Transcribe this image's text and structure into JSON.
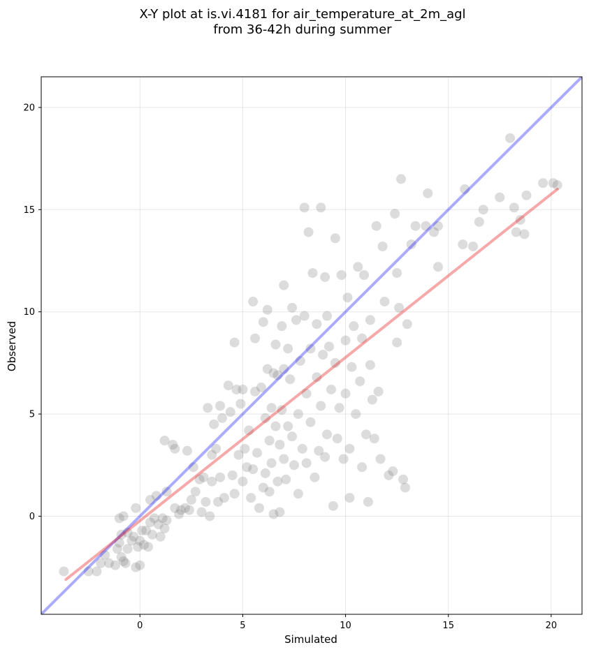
{
  "chart_data": {
    "type": "scatter",
    "title": [
      "X-Y plot at is.vi.4181 for air_temperature_at_2m_agl",
      "from 36-42h during summer"
    ],
    "xlabel": "Simulated",
    "ylabel": "Observed",
    "xlim": [
      -4.8,
      21.5
    ],
    "ylim": [
      -4.8,
      21.5
    ],
    "xticks": [
      0,
      5,
      10,
      15,
      20
    ],
    "yticks": [
      0,
      5,
      10,
      15,
      20
    ],
    "grid": true,
    "colors": {
      "points": "#808080",
      "identity_line": "#0000ff",
      "fit_line": "#e81416"
    },
    "identity_line": {
      "x": [
        -4.8,
        21.5
      ],
      "y": [
        -4.8,
        21.5
      ]
    },
    "fit_line": {
      "x": [
        -3.6,
        20.3
      ],
      "y": [
        -3.1,
        16.0
      ]
    },
    "points": [
      [
        -3.7,
        -2.7
      ],
      [
        -2.5,
        -2.7
      ],
      [
        -2.1,
        -2.7
      ],
      [
        -1.9,
        -2.3
      ],
      [
        -1.7,
        -1.9
      ],
      [
        -1.5,
        -2.3
      ],
      [
        -1.2,
        -2.4
      ],
      [
        -1.1,
        -1.6
      ],
      [
        -1.0,
        -1.3
      ],
      [
        -0.9,
        -2.0
      ],
      [
        -0.8,
        -2.2
      ],
      [
        -0.7,
        -2.3
      ],
      [
        -0.6,
        -1.6
      ],
      [
        -0.9,
        -0.9
      ],
      [
        -1.0,
        -0.1
      ],
      [
        -0.8,
        0.0
      ],
      [
        -0.6,
        -0.8
      ],
      [
        -0.4,
        -1.2
      ],
      [
        -0.3,
        -1.0
      ],
      [
        -0.2,
        -2.5
      ],
      [
        0.0,
        -2.4
      ],
      [
        -0.1,
        -1.5
      ],
      [
        0.0,
        -1.2
      ],
      [
        0.1,
        -0.7
      ],
      [
        0.2,
        -1.4
      ],
      [
        0.3,
        -0.7
      ],
      [
        0.4,
        -1.5
      ],
      [
        0.5,
        -0.3
      ],
      [
        0.6,
        -0.9
      ],
      [
        0.7,
        -0.1
      ],
      [
        0.9,
        -0.4
      ],
      [
        1.0,
        -1.0
      ],
      [
        1.1,
        -0.1
      ],
      [
        1.2,
        -0.6
      ],
      [
        1.3,
        -0.2
      ],
      [
        -0.2,
        0.4
      ],
      [
        0.5,
        0.8
      ],
      [
        0.8,
        1.0
      ],
      [
        1.2,
        3.7
      ],
      [
        1.3,
        1.2
      ],
      [
        1.6,
        3.5
      ],
      [
        1.7,
        0.4
      ],
      [
        1.7,
        3.3
      ],
      [
        1.9,
        0.1
      ],
      [
        2.0,
        0.3
      ],
      [
        2.2,
        0.4
      ],
      [
        2.3,
        3.2
      ],
      [
        2.4,
        0.3
      ],
      [
        2.5,
        0.8
      ],
      [
        2.6,
        2.4
      ],
      [
        2.7,
        1.2
      ],
      [
        2.9,
        1.8
      ],
      [
        3.0,
        0.2
      ],
      [
        3.1,
        1.9
      ],
      [
        3.2,
        0.7
      ],
      [
        3.3,
        5.3
      ],
      [
        3.4,
        0.0
      ],
      [
        3.5,
        3.0
      ],
      [
        3.5,
        1.7
      ],
      [
        3.6,
        4.5
      ],
      [
        3.7,
        3.3
      ],
      [
        3.8,
        0.7
      ],
      [
        3.9,
        1.9
      ],
      [
        3.9,
        5.4
      ],
      [
        4.0,
        4.8
      ],
      [
        4.1,
        0.9
      ],
      [
        4.3,
        6.4
      ],
      [
        4.4,
        5.1
      ],
      [
        4.5,
        2.0
      ],
      [
        4.6,
        1.1
      ],
      [
        4.6,
        8.5
      ],
      [
        4.7,
        6.2
      ],
      [
        4.8,
        3.0
      ],
      [
        4.9,
        5.5
      ],
      [
        5.0,
        1.7
      ],
      [
        5.0,
        6.2
      ],
      [
        5.1,
        3.3
      ],
      [
        5.2,
        2.4
      ],
      [
        5.3,
        4.2
      ],
      [
        5.4,
        0.9
      ],
      [
        5.5,
        2.3
      ],
      [
        5.5,
        10.5
      ],
      [
        5.6,
        6.1
      ],
      [
        5.6,
        8.7
      ],
      [
        5.7,
        3.1
      ],
      [
        5.8,
        0.4
      ],
      [
        5.9,
        6.3
      ],
      [
        6.0,
        9.5
      ],
      [
        6.0,
        1.4
      ],
      [
        6.1,
        4.8
      ],
      [
        6.1,
        2.1
      ],
      [
        6.2,
        7.2
      ],
      [
        6.2,
        10.1
      ],
      [
        6.3,
        3.7
      ],
      [
        6.3,
        1.2
      ],
      [
        6.4,
        5.3
      ],
      [
        6.4,
        2.6
      ],
      [
        6.5,
        0.1
      ],
      [
        6.5,
        7.0
      ],
      [
        6.6,
        8.4
      ],
      [
        6.6,
        4.4
      ],
      [
        6.7,
        1.7
      ],
      [
        6.7,
        6.9
      ],
      [
        6.8,
        3.5
      ],
      [
        6.8,
        0.2
      ],
      [
        6.9,
        5.2
      ],
      [
        6.9,
        9.3
      ],
      [
        7.0,
        2.8
      ],
      [
        7.0,
        7.2
      ],
      [
        7.0,
        11.3
      ],
      [
        7.1,
        1.8
      ],
      [
        7.2,
        4.4
      ],
      [
        7.2,
        8.2
      ],
      [
        7.3,
        6.7
      ],
      [
        7.4,
        10.2
      ],
      [
        7.4,
        3.9
      ],
      [
        7.5,
        2.5
      ],
      [
        7.6,
        9.6
      ],
      [
        7.7,
        5.0
      ],
      [
        7.7,
        1.1
      ],
      [
        7.8,
        7.6
      ],
      [
        7.9,
        3.3
      ],
      [
        8.0,
        15.1
      ],
      [
        8.0,
        9.8
      ],
      [
        8.1,
        6.0
      ],
      [
        8.1,
        2.6
      ],
      [
        8.2,
        13.9
      ],
      [
        8.3,
        8.2
      ],
      [
        8.3,
        4.6
      ],
      [
        8.4,
        11.9
      ],
      [
        8.5,
        1.9
      ],
      [
        8.6,
        6.8
      ],
      [
        8.6,
        9.4
      ],
      [
        8.7,
        3.2
      ],
      [
        8.8,
        15.1
      ],
      [
        8.8,
        5.4
      ],
      [
        8.9,
        7.9
      ],
      [
        9.0,
        11.7
      ],
      [
        9.0,
        2.9
      ],
      [
        9.1,
        9.8
      ],
      [
        9.1,
        4.0
      ],
      [
        9.2,
        8.3
      ],
      [
        9.3,
        6.2
      ],
      [
        9.4,
        0.5
      ],
      [
        9.5,
        13.6
      ],
      [
        9.5,
        7.5
      ],
      [
        9.6,
        3.8
      ],
      [
        9.7,
        5.3
      ],
      [
        9.8,
        11.8
      ],
      [
        9.9,
        2.8
      ],
      [
        10.0,
        8.6
      ],
      [
        10.0,
        6.0
      ],
      [
        10.1,
        10.7
      ],
      [
        10.2,
        0.9
      ],
      [
        10.2,
        3.3
      ],
      [
        10.3,
        7.3
      ],
      [
        10.4,
        9.3
      ],
      [
        10.5,
        5.0
      ],
      [
        10.6,
        12.2
      ],
      [
        10.7,
        6.6
      ],
      [
        10.8,
        2.4
      ],
      [
        10.8,
        8.7
      ],
      [
        10.9,
        11.8
      ],
      [
        11.0,
        4.0
      ],
      [
        11.1,
        0.7
      ],
      [
        11.2,
        7.4
      ],
      [
        11.2,
        9.6
      ],
      [
        11.3,
        5.7
      ],
      [
        11.4,
        3.8
      ],
      [
        11.5,
        14.2
      ],
      [
        11.6,
        6.1
      ],
      [
        11.7,
        2.8
      ],
      [
        11.8,
        13.2
      ],
      [
        11.9,
        10.5
      ],
      [
        12.1,
        2.0
      ],
      [
        12.3,
        2.2
      ],
      [
        12.4,
        14.8
      ],
      [
        12.5,
        8.5
      ],
      [
        12.5,
        11.9
      ],
      [
        12.6,
        10.2
      ],
      [
        12.7,
        16.5
      ],
      [
        12.8,
        1.8
      ],
      [
        12.9,
        1.4
      ],
      [
        13.0,
        9.4
      ],
      [
        13.2,
        13.3
      ],
      [
        13.4,
        14.2
      ],
      [
        13.9,
        14.2
      ],
      [
        14.0,
        15.8
      ],
      [
        14.3,
        13.9
      ],
      [
        14.5,
        12.2
      ],
      [
        14.5,
        14.2
      ],
      [
        15.7,
        13.3
      ],
      [
        15.8,
        16.0
      ],
      [
        16.2,
        13.2
      ],
      [
        16.5,
        14.4
      ],
      [
        16.7,
        15.0
      ],
      [
        17.5,
        15.6
      ],
      [
        18.0,
        18.5
      ],
      [
        18.2,
        15.1
      ],
      [
        18.3,
        13.9
      ],
      [
        18.5,
        14.5
      ],
      [
        18.7,
        13.8
      ],
      [
        18.8,
        15.7
      ],
      [
        19.6,
        16.3
      ],
      [
        20.1,
        16.3
      ],
      [
        20.3,
        16.2
      ]
    ]
  }
}
